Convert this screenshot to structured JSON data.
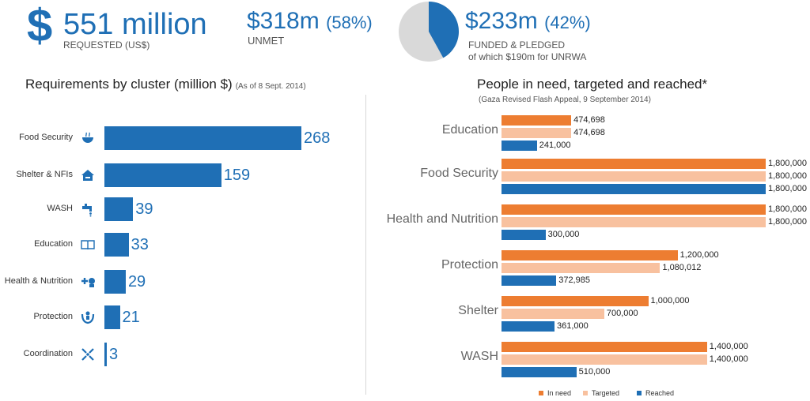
{
  "header": {
    "dollar_sign": "$",
    "requested_value": "551 million",
    "requested_label": "REQUESTED (US$)",
    "unmet_value": "$318m",
    "unmet_pct": "(58%)",
    "unmet_label": "UNMET",
    "funded_value": "$233m",
    "funded_pct": "(42%)",
    "funded_label": "FUNDED & PLEDGED",
    "funded_sub": "of which $190m for UNRWA",
    "pie_funded_fraction": 0.42,
    "colors": {
      "accent": "#1f6fb5",
      "pie_unmet": "#d9d9d9"
    }
  },
  "chart_data": [
    {
      "type": "bar",
      "orientation": "horizontal",
      "title": "Requirements by cluster (million $)",
      "subtitle": "(As of 8 Sept. 2014)",
      "categories": [
        "Food Security",
        "Shelter & NFIs",
        "WASH",
        "Education",
        "Health & Nutrition",
        "Protection",
        "Coordination"
      ],
      "icons": [
        "bowl-icon",
        "house-icon",
        "tap-icon",
        "book-icon",
        "health-icon",
        "protection-icon",
        "coordination-icon"
      ],
      "values": [
        268,
        159,
        39,
        33,
        29,
        21,
        3
      ],
      "value_labels": [
        "268",
        "159",
        "39",
        "33",
        "29",
        "21",
        "3"
      ],
      "color": "#1f6fb5",
      "xlim": [
        0,
        268
      ]
    },
    {
      "type": "bar",
      "orientation": "horizontal",
      "title": "People in need, targeted and reached*",
      "subtitle": "(Gaza Revised Flash Appeal, 9 September 2014)",
      "categories": [
        "Education",
        "Food Security",
        "Health and Nutrition",
        "Protection",
        "Shelter",
        "WASH"
      ],
      "series": [
        {
          "name": "In need",
          "color": "#ed7d31",
          "values": [
            474698,
            1800000,
            1800000,
            1200000,
            1000000,
            1400000
          ],
          "labels": [
            "474,698",
            "1,800,000",
            "1,800,000",
            "1,200,000",
            "1,000,000",
            "1,400,000"
          ]
        },
        {
          "name": "Targeted",
          "color": "#f8c19f",
          "values": [
            474698,
            1800000,
            1800000,
            1080012,
            700000,
            1400000
          ],
          "labels": [
            "474,698",
            "1,800,000",
            "1,800,000",
            "1,080,012",
            "700,000",
            "1,400,000"
          ]
        },
        {
          "name": "Reached",
          "color": "#1f6fb5",
          "values": [
            241000,
            1800000,
            300000,
            372985,
            361000,
            510000
          ],
          "labels": [
            "241,000",
            "1,800,000",
            "300,000",
            "372,985",
            "361,000",
            "510,000"
          ]
        }
      ],
      "xlim": [
        0,
        1800000
      ],
      "legend": "bottom"
    }
  ]
}
